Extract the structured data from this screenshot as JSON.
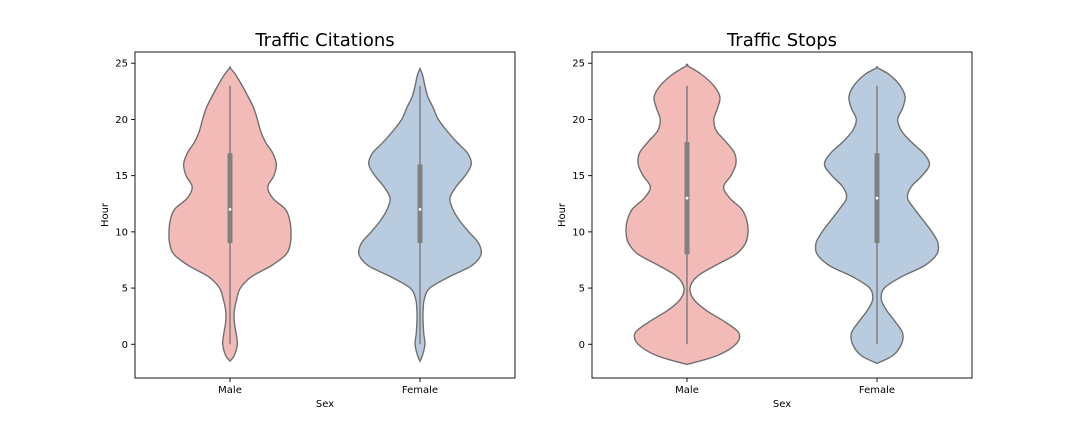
{
  "chart_data": [
    {
      "type": "violin",
      "title": "Traffic Citations",
      "xlabel": "Sex",
      "ylabel": "Hour",
      "categories": [
        "Male",
        "Female"
      ],
      "ylim": [
        -3,
        26
      ],
      "yticks": [
        0,
        5,
        10,
        15,
        20,
        25
      ],
      "colors": {
        "Male": "#f2bbb7",
        "Female": "#b8cbdf",
        "outline": "#707070",
        "box": "#808080",
        "median": "#ffffff"
      },
      "series": [
        {
          "name": "Male",
          "hours": [
            -1.5,
            -1,
            0,
            1,
            2,
            3,
            4,
            5,
            6,
            7,
            8,
            9,
            10,
            11,
            12,
            13,
            14,
            15,
            16,
            17,
            18,
            19,
            20,
            21,
            22,
            23,
            24,
            24.6
          ],
          "density": [
            0,
            0.07,
            0.12,
            0.1,
            0.07,
            0.07,
            0.11,
            0.17,
            0.35,
            0.68,
            0.92,
            0.99,
            1.0,
            0.98,
            0.91,
            0.7,
            0.62,
            0.72,
            0.76,
            0.7,
            0.58,
            0.5,
            0.45,
            0.39,
            0.3,
            0.2,
            0.09,
            0
          ],
          "box": {
            "q1": 9,
            "median": 12,
            "q3": 17,
            "whisker_low": 0,
            "whisker_high": 23
          }
        },
        {
          "name": "Female",
          "hours": [
            -1.5,
            -1,
            0,
            1,
            2,
            3,
            4,
            5,
            6,
            7,
            8,
            9,
            10,
            11,
            12,
            13,
            14,
            15,
            16,
            17,
            18,
            19,
            20,
            21,
            22,
            23,
            24,
            24.5
          ],
          "density": [
            0,
            0.04,
            0.08,
            0.06,
            0.05,
            0.05,
            0.07,
            0.16,
            0.48,
            0.85,
            1.0,
            0.96,
            0.8,
            0.65,
            0.54,
            0.49,
            0.59,
            0.74,
            0.84,
            0.78,
            0.6,
            0.44,
            0.3,
            0.22,
            0.13,
            0.08,
            0.04,
            0
          ],
          "box": {
            "q1": 9,
            "median": 12,
            "q3": 16,
            "whisker_low": 0,
            "whisker_high": 23
          }
        }
      ]
    },
    {
      "type": "violin",
      "title": "Traffic Stops",
      "xlabel": "Sex",
      "ylabel": "Hour",
      "categories": [
        "Male",
        "Female"
      ],
      "ylim": [
        -3,
        26
      ],
      "yticks": [
        0,
        5,
        10,
        15,
        20,
        25
      ],
      "colors": {
        "Male": "#f2bbb7",
        "Female": "#b8cbdf",
        "outline": "#707070",
        "box": "#808080",
        "median": "#ffffff"
      },
      "series": [
        {
          "name": "Male",
          "hours": [
            -1.8,
            -1,
            0,
            1,
            2,
            3,
            4,
            5,
            6,
            7,
            8,
            9,
            10,
            11,
            12,
            13,
            14,
            15,
            16,
            17,
            18,
            19,
            20,
            21,
            22,
            23,
            24,
            24.8
          ],
          "density": [
            0,
            0.5,
            0.8,
            0.85,
            0.62,
            0.32,
            0.11,
            0.05,
            0.16,
            0.46,
            0.8,
            0.96,
            1.0,
            0.98,
            0.9,
            0.7,
            0.6,
            0.72,
            0.8,
            0.78,
            0.64,
            0.48,
            0.44,
            0.5,
            0.54,
            0.44,
            0.24,
            0
          ],
          "box": {
            "q1": 8,
            "median": 13,
            "q3": 18,
            "whisker_low": 0,
            "whisker_high": 23
          }
        },
        {
          "name": "Female",
          "hours": [
            -1.7,
            -1,
            0,
            1,
            2,
            3,
            4,
            5,
            6,
            7,
            8,
            9,
            10,
            11,
            12,
            13,
            14,
            15,
            16,
            17,
            18,
            19,
            20,
            21,
            22,
            23,
            24,
            24.6
          ],
          "density": [
            0,
            0.26,
            0.4,
            0.42,
            0.3,
            0.16,
            0.07,
            0.12,
            0.4,
            0.78,
            0.98,
            1.0,
            0.9,
            0.76,
            0.62,
            0.5,
            0.56,
            0.74,
            0.86,
            0.76,
            0.56,
            0.4,
            0.34,
            0.42,
            0.46,
            0.38,
            0.2,
            0
          ],
          "box": {
            "q1": 9,
            "median": 13,
            "q3": 17,
            "whisker_low": 0,
            "whisker_high": 23
          }
        }
      ]
    }
  ]
}
